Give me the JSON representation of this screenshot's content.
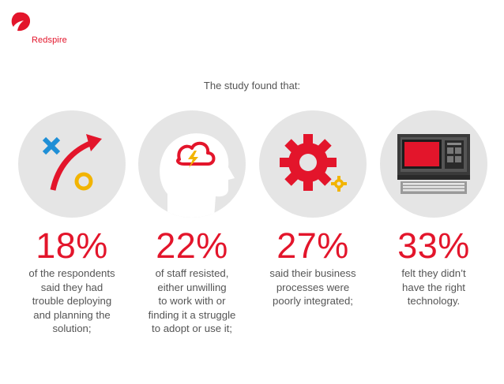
{
  "logo": {
    "text": "Redspire"
  },
  "intro": "The study found that:",
  "colors": {
    "accent": "#e3152b",
    "circle": "#e5e5e5",
    "text": "#555555",
    "cross": "#1f8fd6",
    "circle_marker": "#f2b400"
  },
  "stats": [
    {
      "icon": "strategy-icon",
      "value": "18%",
      "text": "of the respondents\nsaid they had\ntrouble deploying\nand planning the\nsolution;"
    },
    {
      "icon": "head-storm-icon",
      "value": "22%",
      "text": "of staff resisted,\neither unwilling\nto work with or\nfinding it a struggle\nto adopt or use it;"
    },
    {
      "icon": "gears-icon",
      "value": "27%",
      "text": "said their business\nprocesses were\npoorly integrated;"
    },
    {
      "icon": "old-computer-icon",
      "value": "33%",
      "text": "felt they didn’t\nhave the right\ntechnology."
    }
  ]
}
